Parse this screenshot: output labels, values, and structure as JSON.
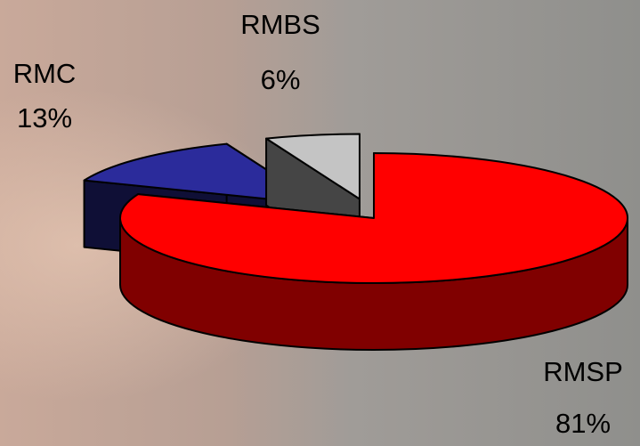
{
  "chart_data": {
    "type": "pie3d",
    "categories": [
      "RMSP",
      "RMC",
      "RMBS"
    ],
    "values": [
      81,
      13,
      6
    ],
    "value_labels": [
      "81%",
      "13%",
      "6%"
    ],
    "colors": [
      "#ff0000",
      "#2b2b9b",
      "#c4c4c4"
    ]
  }
}
